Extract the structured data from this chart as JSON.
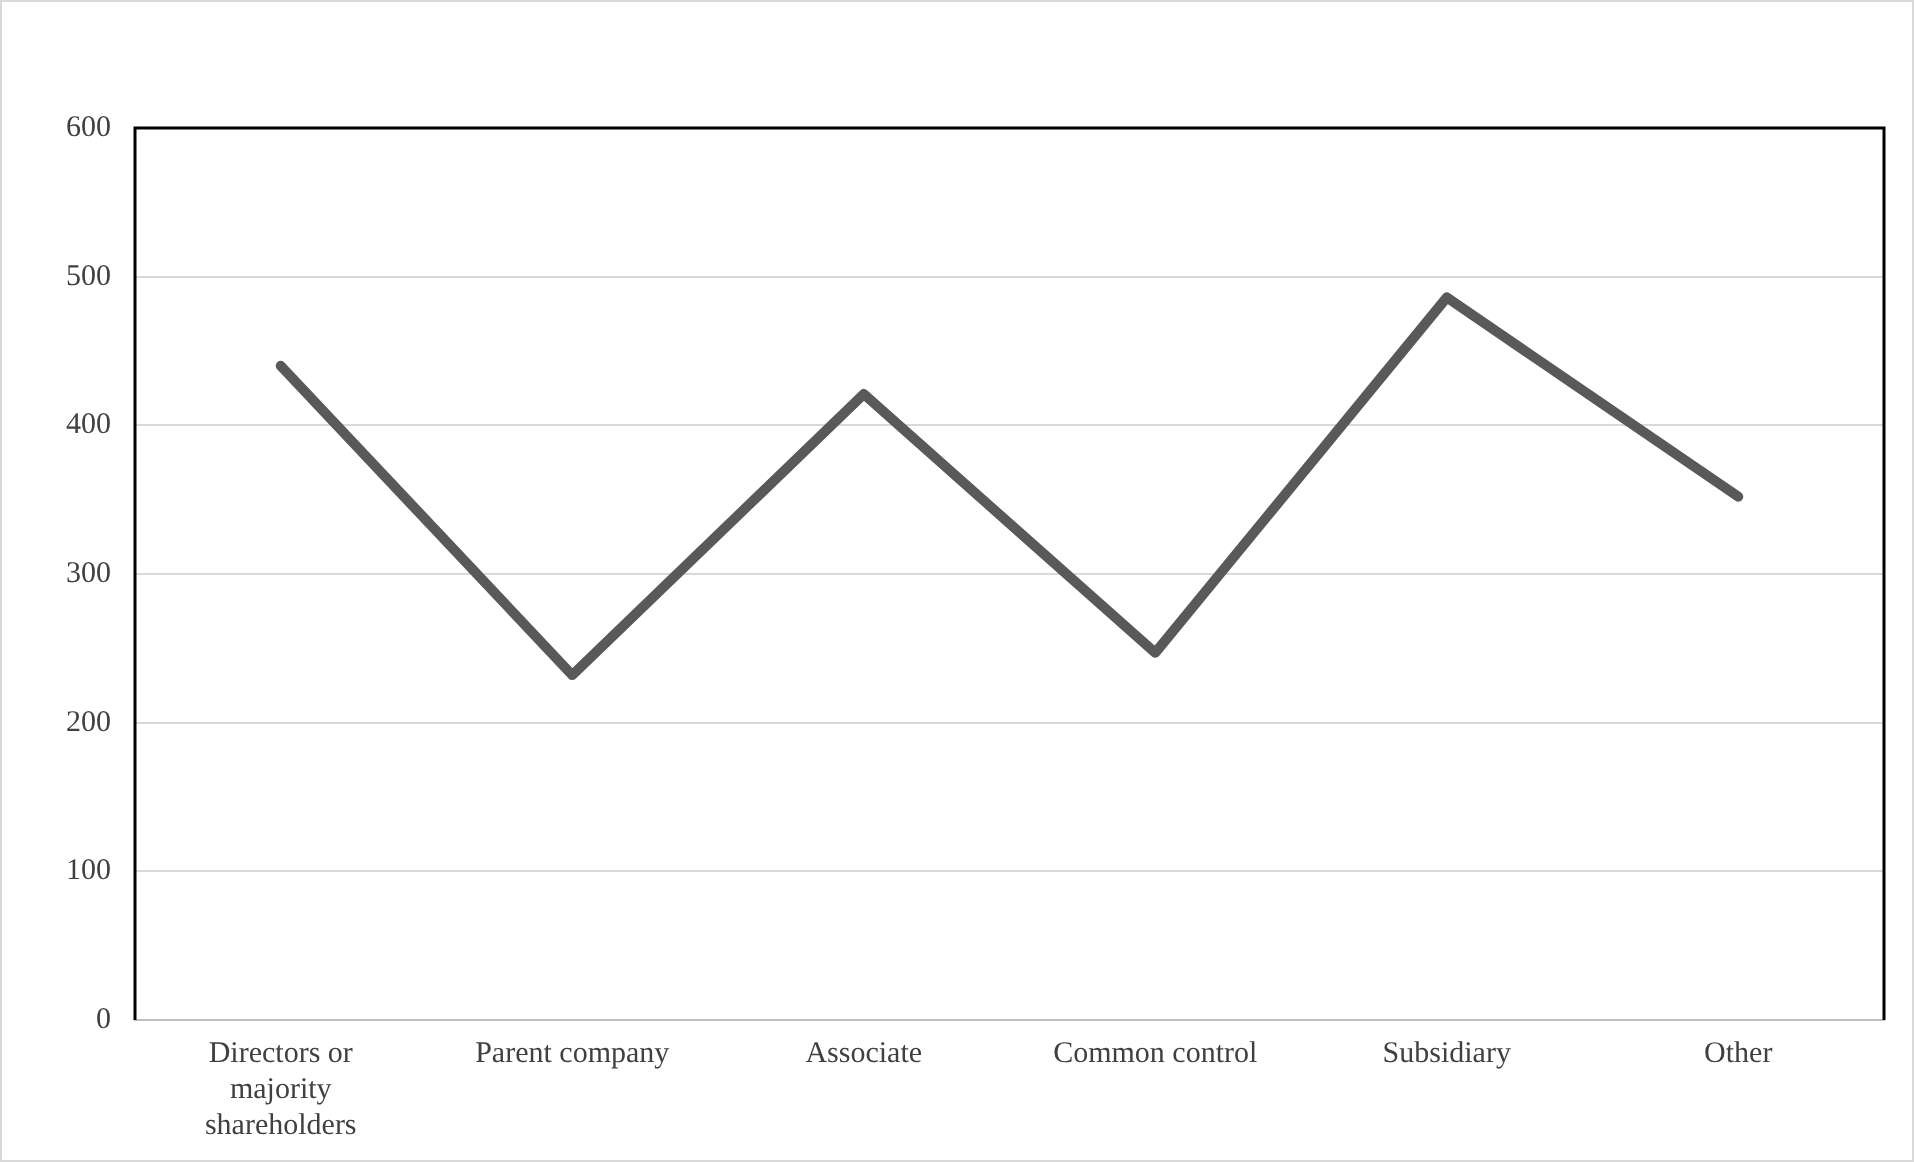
{
  "chart_data": {
    "type": "line",
    "categories": [
      "Directors or majority shareholders",
      "Parent company",
      "Associate",
      "Common control",
      "Subsidiary",
      "Other"
    ],
    "series": [
      {
        "color": "#595959",
        "values": [
          440,
          232,
          421,
          247,
          486,
          352
        ]
      }
    ],
    "ylim": [
      0,
      600
    ],
    "yticks": [
      0,
      100,
      200,
      300,
      400,
      500,
      600
    ],
    "grid": "y",
    "legend": false,
    "marker": "none",
    "line_style": "solid"
  }
}
